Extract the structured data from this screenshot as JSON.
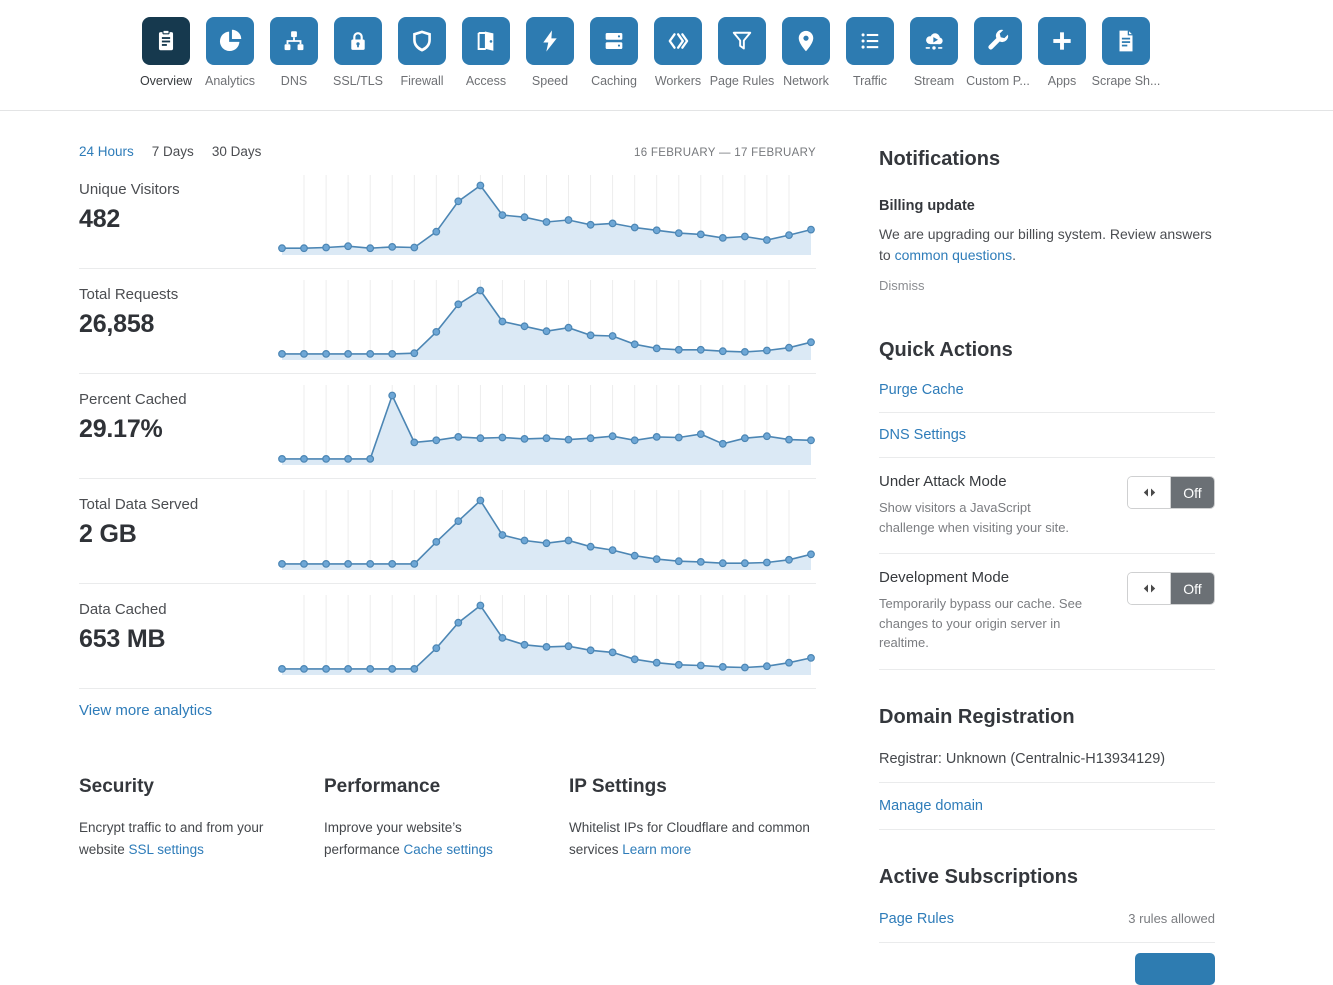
{
  "colors": {
    "tile_blue": "#2d7bb1",
    "tile_selected": "#16394e",
    "link_blue": "#2e7cb9",
    "chart_line": "#4c86b4",
    "chart_dot": "#6ea7d6",
    "chart_fill": "#dbe9f5",
    "toggle_off_bg": "#6b7075"
  },
  "nav": {
    "items": [
      {
        "label": "Overview",
        "icon": "overview-icon",
        "selected": true
      },
      {
        "label": "Analytics",
        "icon": "analytics-icon"
      },
      {
        "label": "DNS",
        "icon": "dns-icon"
      },
      {
        "label": "SSL/TLS",
        "icon": "ssl-tls-icon"
      },
      {
        "label": "Firewall",
        "icon": "firewall-icon"
      },
      {
        "label": "Access",
        "icon": "access-icon"
      },
      {
        "label": "Speed",
        "icon": "speed-icon"
      },
      {
        "label": "Caching",
        "icon": "caching-icon"
      },
      {
        "label": "Workers",
        "icon": "workers-icon"
      },
      {
        "label": "Page Rules",
        "icon": "page-rules-icon"
      },
      {
        "label": "Network",
        "icon": "network-icon"
      },
      {
        "label": "Traffic",
        "icon": "traffic-icon"
      },
      {
        "label": "Stream",
        "icon": "stream-icon"
      },
      {
        "label": "Custom P...",
        "icon": "custom-pages-icon"
      },
      {
        "label": "Apps",
        "icon": "apps-icon"
      },
      {
        "label": "Scrape Sh...",
        "icon": "scrape-shield-icon"
      }
    ]
  },
  "time_tabs": {
    "items": [
      {
        "label": "24 Hours",
        "selected": true
      },
      {
        "label": "7 Days",
        "selected": false
      },
      {
        "label": "30 Days",
        "selected": false
      }
    ],
    "date_range": "16 FEBRUARY — 17 FEBRUARY"
  },
  "chart_data": [
    {
      "type": "area",
      "title": "Unique Visitors",
      "metric_value": "482",
      "x_axis": "24 hours, 16–17 February, hourly points",
      "ylim": [
        0,
        100
      ],
      "unit": "normalized to peak=95",
      "values": [
        4,
        4,
        5,
        7,
        4,
        6,
        5,
        28,
        72,
        95,
        52,
        49,
        42,
        45,
        38,
        40,
        34,
        30,
        26,
        24,
        19,
        21,
        16,
        23,
        31
      ]
    },
    {
      "type": "area",
      "title": "Total Requests",
      "metric_value": "26,858",
      "x_axis": "24 hours, 16–17 February, hourly points",
      "ylim": [
        0,
        100
      ],
      "unit": "normalized to peak=95",
      "values": [
        3,
        3,
        3,
        3,
        3,
        3,
        4,
        35,
        75,
        95,
        50,
        43,
        36,
        41,
        30,
        29,
        17,
        11,
        9,
        9,
        7,
        6,
        8,
        12,
        20
      ]
    },
    {
      "type": "area",
      "title": "Percent Cached",
      "metric_value": "29.17%",
      "x_axis": "24 hours, 16–17 February, hourly points",
      "ylim": [
        0,
        100
      ],
      "unit": "normalized to peak=95",
      "values": [
        3,
        3,
        3,
        3,
        3,
        95,
        27,
        30,
        35,
        33,
        34,
        32,
        33,
        31,
        33,
        36,
        30,
        35,
        34,
        39,
        25,
        33,
        36,
        31,
        30
      ]
    },
    {
      "type": "area",
      "title": "Total Data Served",
      "metric_value": "2 GB",
      "x_axis": "24 hours, 16–17 February, hourly points",
      "ylim": [
        0,
        100
      ],
      "unit": "normalized to peak=95",
      "values": [
        3,
        3,
        3,
        3,
        3,
        3,
        3,
        35,
        65,
        95,
        45,
        37,
        33,
        37,
        28,
        23,
        15,
        10,
        7,
        6,
        4,
        4,
        5,
        9,
        17
      ]
    },
    {
      "type": "area",
      "title": "Data Cached",
      "metric_value": "653 MB",
      "x_axis": "24 hours, 16–17 February, hourly points",
      "ylim": [
        0,
        100
      ],
      "unit": "normalized to peak=95",
      "values": [
        3,
        3,
        3,
        3,
        3,
        3,
        3,
        33,
        70,
        95,
        48,
        38,
        35,
        36,
        30,
        27,
        17,
        12,
        9,
        8,
        6,
        5,
        7,
        12,
        19
      ]
    }
  ],
  "metrics": {
    "view_more_label": "View more analytics"
  },
  "notifications": {
    "title": "Notifications",
    "item": {
      "title": "Billing update",
      "body_prefix": "We are upgrading our billing system. Review answers to ",
      "link_text": "common questions",
      "body_suffix": ".",
      "dismiss_label": "Dismiss"
    }
  },
  "quick_actions": {
    "title": "Quick Actions",
    "links": [
      "Purge Cache",
      "DNS Settings"
    ],
    "toggles": [
      {
        "title": "Under Attack Mode",
        "description": "Show visitors a JavaScript challenge when visiting your site.",
        "state": "Off"
      },
      {
        "title": "Development Mode",
        "description": "Temporarily bypass our cache. See changes to your origin server in realtime.",
        "state": "Off"
      }
    ]
  },
  "domain_registration": {
    "title": "Domain Registration",
    "registrar": "Registrar: Unknown (Centralnic-H13934129)",
    "manage_link": "Manage domain"
  },
  "active_subscriptions": {
    "title": "Active Subscriptions",
    "rows": [
      {
        "link_text": "Page Rules",
        "note": "3 rules allowed"
      }
    ]
  },
  "bottom_sections": [
    {
      "title": "Security",
      "text": "Encrypt traffic to and from your website ",
      "link": "SSL settings"
    },
    {
      "title": "Performance",
      "text": "Improve your website’s performance ",
      "link": "Cache settings"
    },
    {
      "title": "IP Settings",
      "text": "Whitelist IPs for Cloudflare and common services ",
      "link": "Learn more"
    }
  ]
}
